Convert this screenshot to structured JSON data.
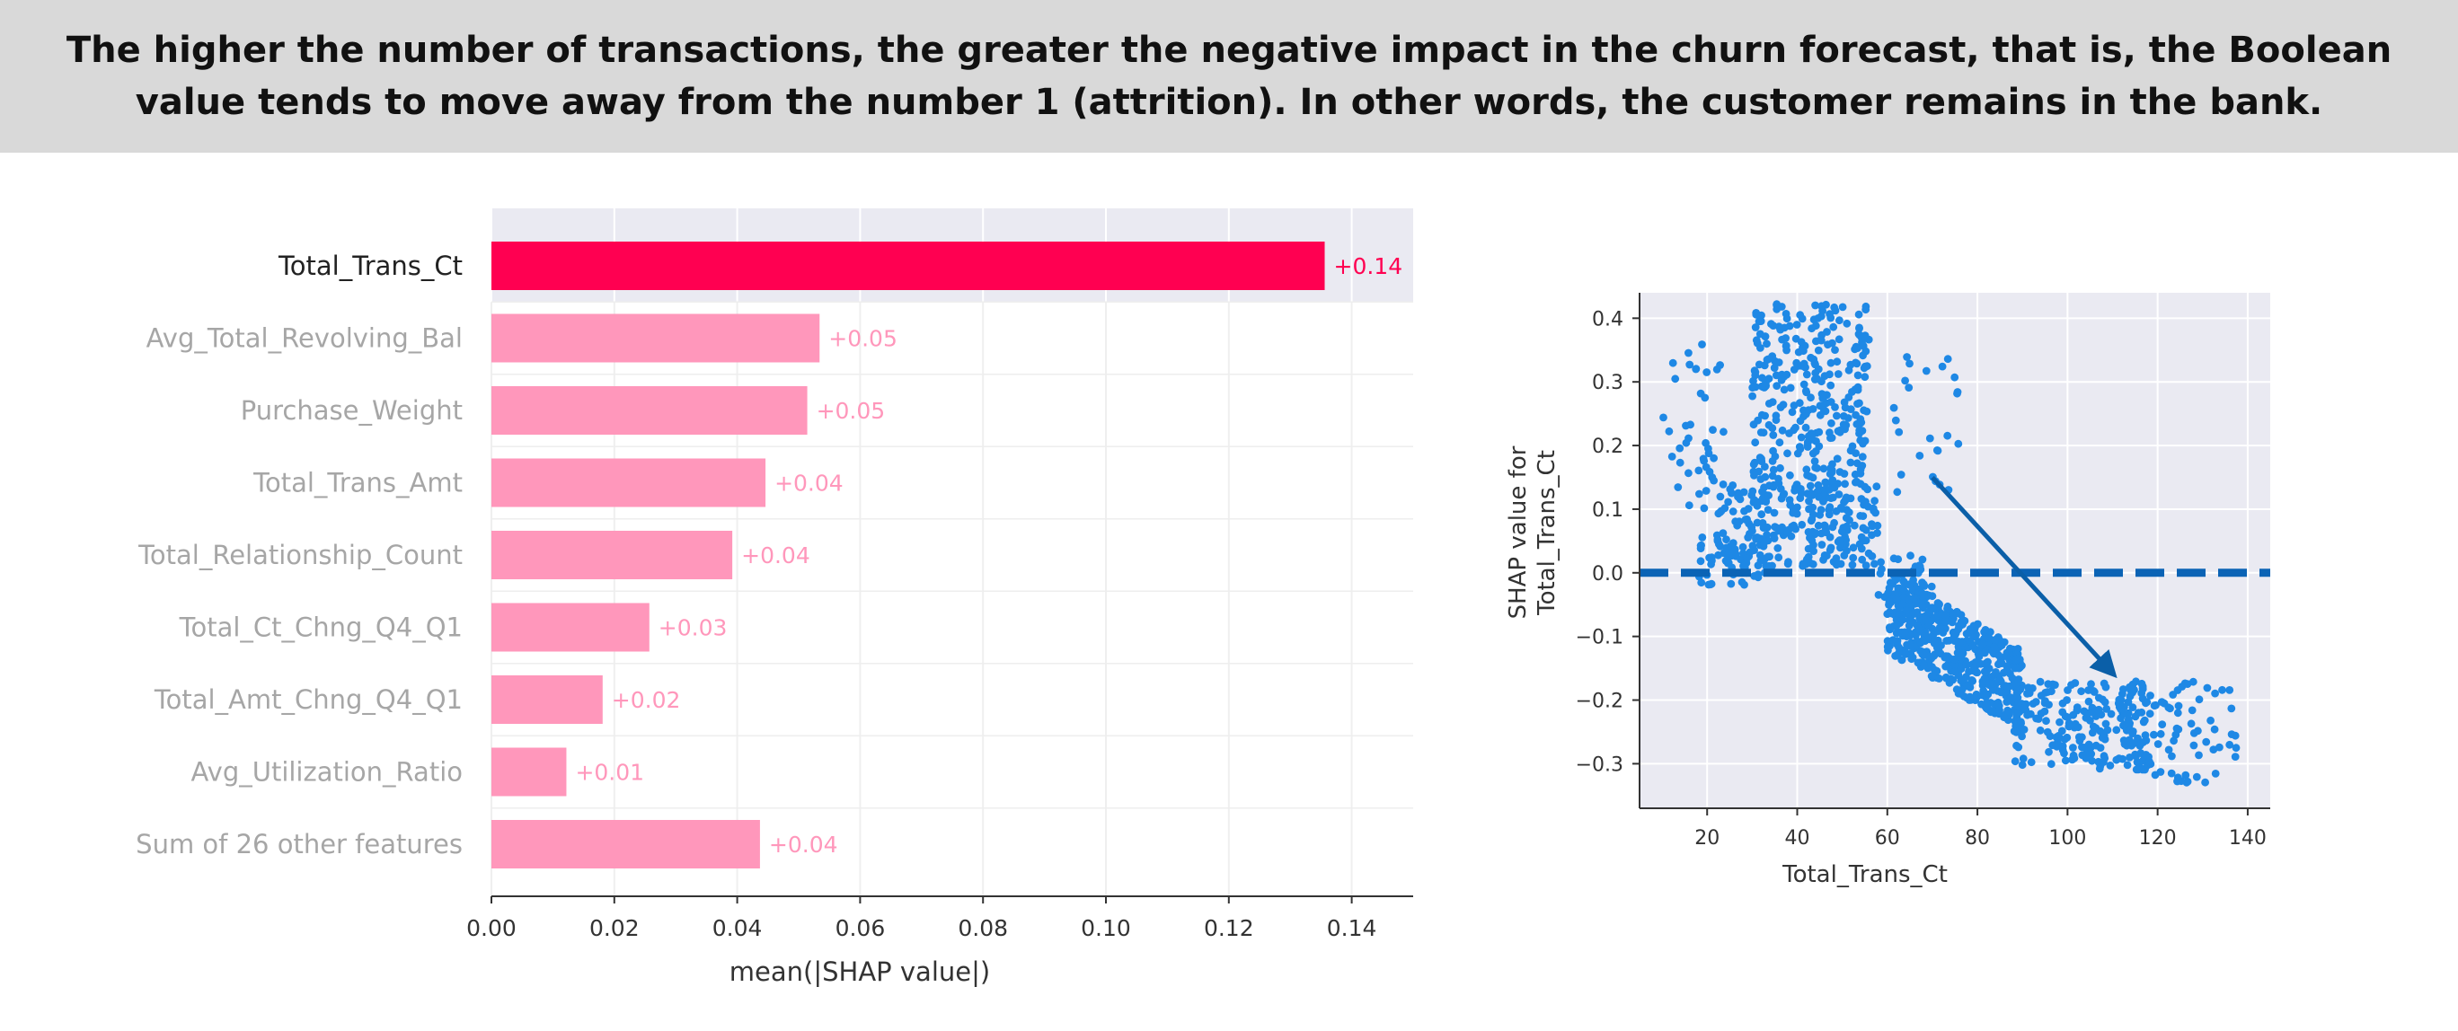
{
  "banner": {
    "line1": "The higher the number of transactions, the greater the negative impact in the churn forecast, that is, the Boolean",
    "line2": "value tends to move away from the number 1 (attrition). In other words, the customer remains in the bank."
  },
  "colors": {
    "highlight_bar": "#ff0051",
    "other_bars": "#ff97bb",
    "highlight_label": "#222222",
    "other_labels": "#a6a6a6",
    "plot_bg": "#eaeaf2",
    "scatter_points": "#1e88e5",
    "zero_line": "#0b63b5",
    "arrow": "#0b5fa8",
    "banner_bg": "#d9d9d9"
  },
  "chart_data": [
    {
      "type": "bar",
      "orientation": "horizontal",
      "categories": [
        "Total_Trans_Ct",
        "Avg_Total_Revolving_Bal",
        "Purchase_Weight",
        "Total_Trans_Amt",
        "Total_Relationship_Count",
        "Total_Ct_Chng_Q4_Q1",
        "Total_Amt_Chng_Q4_Q1",
        "Avg_Utilization_Ratio",
        "Sum of 26 other features"
      ],
      "values": [
        0.1356,
        0.0534,
        0.0514,
        0.0446,
        0.0392,
        0.0257,
        0.0181,
        0.0122,
        0.0437
      ],
      "value_labels": [
        "+0.14",
        "+0.05",
        "+0.05",
        "+0.04",
        "+0.04",
        "+0.03",
        "+0.02",
        "+0.01",
        "+0.04"
      ],
      "xlabel": "mean(|SHAP value|)",
      "xlim": [
        0,
        0.15
      ],
      "xticks": [
        "0.00",
        "0.02",
        "0.04",
        "0.06",
        "0.08",
        "0.10",
        "0.12",
        "0.14"
      ],
      "grid": true
    },
    {
      "type": "scatter",
      "xlabel": "Total_Trans_Ct",
      "ylabel_line1": "SHAP value for",
      "ylabel_line2": "Total_Trans_Ct",
      "xlim": [
        5,
        145
      ],
      "ylim": [
        -0.37,
        0.44
      ],
      "xticks": [
        "20",
        "40",
        "60",
        "80",
        "100",
        "120",
        "140"
      ],
      "yticks": [
        "0.4",
        "0.3",
        "0.2",
        "0.1",
        "0.0",
        "−0.1",
        "−0.2",
        "−0.3"
      ],
      "reference_line_y": 0.0,
      "arrow": {
        "from": [
          70,
          0.15
        ],
        "to": [
          109,
          -0.15
        ]
      },
      "clusters": [
        {
          "x_range": [
            10,
            24
          ],
          "y_range": [
            0.1,
            0.36
          ],
          "count": 40
        },
        {
          "x_range": [
            22,
            58
          ],
          "y_range": [
            0.01,
            0.14
          ],
          "count": 260
        },
        {
          "x_range": [
            30,
            56
          ],
          "y_range": [
            0.14,
            0.43
          ],
          "count": 300
        },
        {
          "x_range": [
            18,
            34
          ],
          "y_range": [
            -0.02,
            0.06
          ],
          "count": 40
        },
        {
          "x_range": [
            60,
            76
          ],
          "y_range": [
            0.12,
            0.34
          ],
          "count": 25
        },
        {
          "x_range": [
            57,
            70
          ],
          "y_range": [
            -0.05,
            0.03
          ],
          "count": 40
        },
        {
          "x_range": [
            60,
            90
          ],
          "y_range": [
            -0.18,
            -0.01
          ],
          "count": 520,
          "trend": -0.0042,
          "anchor_x": 60,
          "anchor_y": -0.06
        },
        {
          "x_range": [
            88,
            118
          ],
          "y_range": [
            -0.31,
            -0.17
          ],
          "count": 200
        },
        {
          "x_range": [
            110,
            138
          ],
          "y_range": [
            -0.33,
            -0.17
          ],
          "count": 80
        }
      ]
    }
  ]
}
